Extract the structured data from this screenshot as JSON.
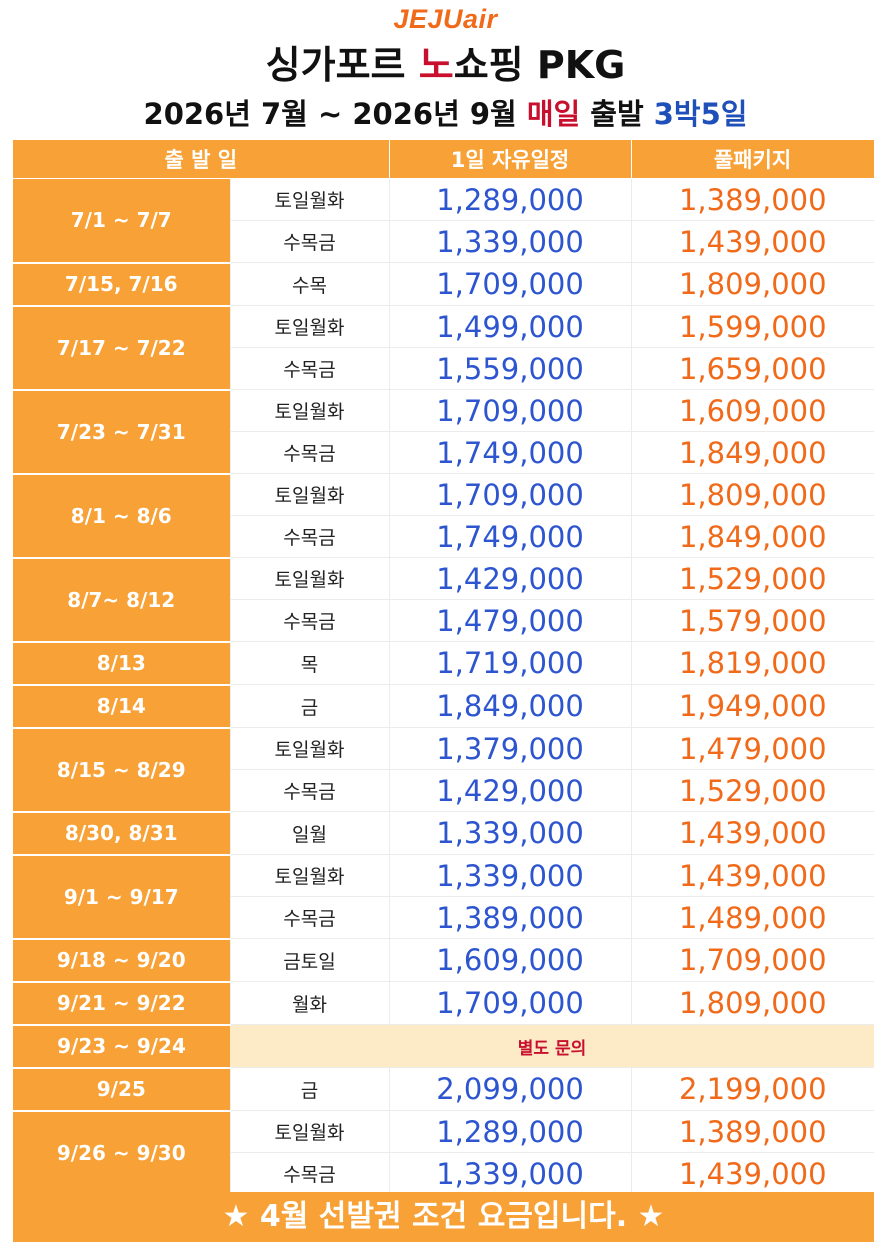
{
  "header": {
    "logo": "JEJUair",
    "title_part1": "싱가포르 ",
    "title_highlight": "노",
    "title_part2": "쇼핑 PKG",
    "subtitle_part1": "2026년 7월 ~ 2026년 9월 ",
    "subtitle_highlight_red": "매일",
    "subtitle_part2": " 출발 ",
    "subtitle_highlight_blue": "3박5일"
  },
  "table": {
    "headers": [
      "출 발 일",
      "1일 자유일정",
      "풀패키지"
    ],
    "groups": [
      {
        "date": "7/1 ~ 7/7",
        "rows": [
          {
            "days": "토일월화",
            "free": "1,289,000",
            "full": "1,389,000"
          },
          {
            "days": "수목금",
            "free": "1,339,000",
            "full": "1,439,000"
          }
        ]
      },
      {
        "date": "7/15, 7/16",
        "rows": [
          {
            "days": "수목",
            "free": "1,709,000",
            "full": "1,809,000"
          }
        ]
      },
      {
        "date": "7/17 ~ 7/22",
        "rows": [
          {
            "days": "토일월화",
            "free": "1,499,000",
            "full": "1,599,000"
          },
          {
            "days": "수목금",
            "free": "1,559,000",
            "full": "1,659,000"
          }
        ]
      },
      {
        "date": "7/23 ~ 7/31",
        "rows": [
          {
            "days": "토일월화",
            "free": "1,709,000",
            "full": "1,609,000"
          },
          {
            "days": "수목금",
            "free": "1,749,000",
            "full": "1,849,000"
          }
        ]
      },
      {
        "date": "8/1 ~ 8/6",
        "rows": [
          {
            "days": "토일월화",
            "free": "1,709,000",
            "full": "1,809,000"
          },
          {
            "days": "수목금",
            "free": "1,749,000",
            "full": "1,849,000"
          }
        ]
      },
      {
        "date": "8/7~ 8/12",
        "rows": [
          {
            "days": "토일월화",
            "free": "1,429,000",
            "full": "1,529,000"
          },
          {
            "days": "수목금",
            "free": "1,479,000",
            "full": "1,579,000"
          }
        ]
      },
      {
        "date": "8/13",
        "rows": [
          {
            "days": "목",
            "free": "1,719,000",
            "full": "1,819,000"
          }
        ]
      },
      {
        "date": "8/14",
        "rows": [
          {
            "days": "금",
            "free": "1,849,000",
            "full": "1,949,000"
          }
        ]
      },
      {
        "date": "8/15 ~ 8/29",
        "rows": [
          {
            "days": "토일월화",
            "free": "1,379,000",
            "full": "1,479,000"
          },
          {
            "days": "수목금",
            "free": "1,429,000",
            "full": "1,529,000"
          }
        ]
      },
      {
        "date": "8/30, 8/31",
        "rows": [
          {
            "days": "일월",
            "free": "1,339,000",
            "full": "1,439,000"
          }
        ]
      },
      {
        "date": "9/1 ~ 9/17",
        "rows": [
          {
            "days": "토일월화",
            "free": "1,339,000",
            "full": "1,439,000"
          },
          {
            "days": "수목금",
            "free": "1,389,000",
            "full": "1,489,000"
          }
        ]
      },
      {
        "date": "9/18 ~ 9/20",
        "rows": [
          {
            "days": "금토일",
            "free": "1,609,000",
            "full": "1,709,000"
          }
        ]
      },
      {
        "date": "9/21 ~ 9/22",
        "rows": [
          {
            "days": "월화",
            "free": "1,709,000",
            "full": "1,809,000"
          }
        ]
      },
      {
        "date": "9/23 ~ 9/24",
        "inquiry": "별도 문의",
        "rows": []
      },
      {
        "date": "9/25",
        "rows": [
          {
            "days": "금",
            "free": "2,099,000",
            "full": "2,199,000"
          }
        ]
      },
      {
        "date": "9/26 ~ 9/30",
        "rows": [
          {
            "days": "토일월화",
            "free": "1,289,000",
            "full": "1,389,000"
          },
          {
            "days": "수목금",
            "free": "1,339,000",
            "full": "1,439,000"
          }
        ]
      }
    ]
  },
  "footer": {
    "note": "★ 4월 선발권 조건 요금입니다. ★"
  }
}
